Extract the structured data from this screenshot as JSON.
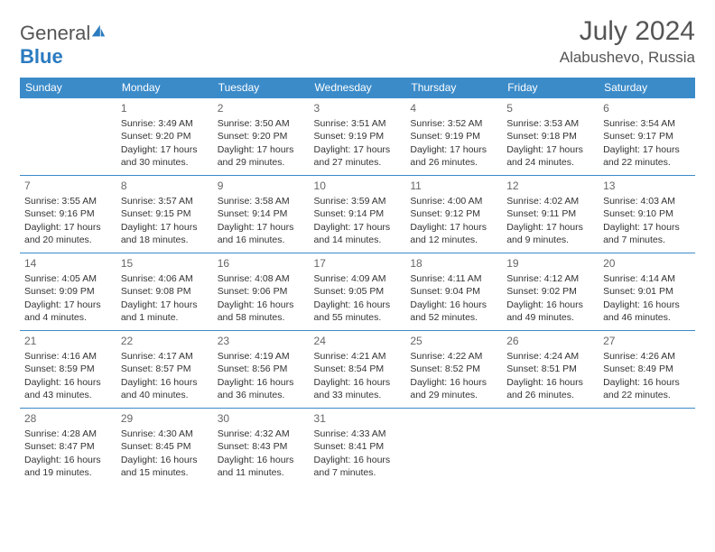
{
  "logo": {
    "text1": "General",
    "text2": "Blue"
  },
  "title": "July 2024",
  "location": "Alabushevo, Russia",
  "daysOfWeek": [
    "Sunday",
    "Monday",
    "Tuesday",
    "Wednesday",
    "Thursday",
    "Friday",
    "Saturday"
  ],
  "colors": {
    "header_bg": "#3b8bc9",
    "header_text": "#ffffff",
    "border": "#3b8bc9",
    "logo_blue": "#2b7bbf"
  },
  "weeks": [
    [
      {
        "day": "",
        "lines": []
      },
      {
        "day": "1",
        "lines": [
          "Sunrise: 3:49 AM",
          "Sunset: 9:20 PM",
          "Daylight: 17 hours and 30 minutes."
        ]
      },
      {
        "day": "2",
        "lines": [
          "Sunrise: 3:50 AM",
          "Sunset: 9:20 PM",
          "Daylight: 17 hours and 29 minutes."
        ]
      },
      {
        "day": "3",
        "lines": [
          "Sunrise: 3:51 AM",
          "Sunset: 9:19 PM",
          "Daylight: 17 hours and 27 minutes."
        ]
      },
      {
        "day": "4",
        "lines": [
          "Sunrise: 3:52 AM",
          "Sunset: 9:19 PM",
          "Daylight: 17 hours and 26 minutes."
        ]
      },
      {
        "day": "5",
        "lines": [
          "Sunrise: 3:53 AM",
          "Sunset: 9:18 PM",
          "Daylight: 17 hours and 24 minutes."
        ]
      },
      {
        "day": "6",
        "lines": [
          "Sunrise: 3:54 AM",
          "Sunset: 9:17 PM",
          "Daylight: 17 hours and 22 minutes."
        ]
      }
    ],
    [
      {
        "day": "7",
        "lines": [
          "Sunrise: 3:55 AM",
          "Sunset: 9:16 PM",
          "Daylight: 17 hours and 20 minutes."
        ]
      },
      {
        "day": "8",
        "lines": [
          "Sunrise: 3:57 AM",
          "Sunset: 9:15 PM",
          "Daylight: 17 hours and 18 minutes."
        ]
      },
      {
        "day": "9",
        "lines": [
          "Sunrise: 3:58 AM",
          "Sunset: 9:14 PM",
          "Daylight: 17 hours and 16 minutes."
        ]
      },
      {
        "day": "10",
        "lines": [
          "Sunrise: 3:59 AM",
          "Sunset: 9:14 PM",
          "Daylight: 17 hours and 14 minutes."
        ]
      },
      {
        "day": "11",
        "lines": [
          "Sunrise: 4:00 AM",
          "Sunset: 9:12 PM",
          "Daylight: 17 hours and 12 minutes."
        ]
      },
      {
        "day": "12",
        "lines": [
          "Sunrise: 4:02 AM",
          "Sunset: 9:11 PM",
          "Daylight: 17 hours and 9 minutes."
        ]
      },
      {
        "day": "13",
        "lines": [
          "Sunrise: 4:03 AM",
          "Sunset: 9:10 PM",
          "Daylight: 17 hours and 7 minutes."
        ]
      }
    ],
    [
      {
        "day": "14",
        "lines": [
          "Sunrise: 4:05 AM",
          "Sunset: 9:09 PM",
          "Daylight: 17 hours and 4 minutes."
        ]
      },
      {
        "day": "15",
        "lines": [
          "Sunrise: 4:06 AM",
          "Sunset: 9:08 PM",
          "Daylight: 17 hours and 1 minute."
        ]
      },
      {
        "day": "16",
        "lines": [
          "Sunrise: 4:08 AM",
          "Sunset: 9:06 PM",
          "Daylight: 16 hours and 58 minutes."
        ]
      },
      {
        "day": "17",
        "lines": [
          "Sunrise: 4:09 AM",
          "Sunset: 9:05 PM",
          "Daylight: 16 hours and 55 minutes."
        ]
      },
      {
        "day": "18",
        "lines": [
          "Sunrise: 4:11 AM",
          "Sunset: 9:04 PM",
          "Daylight: 16 hours and 52 minutes."
        ]
      },
      {
        "day": "19",
        "lines": [
          "Sunrise: 4:12 AM",
          "Sunset: 9:02 PM",
          "Daylight: 16 hours and 49 minutes."
        ]
      },
      {
        "day": "20",
        "lines": [
          "Sunrise: 4:14 AM",
          "Sunset: 9:01 PM",
          "Daylight: 16 hours and 46 minutes."
        ]
      }
    ],
    [
      {
        "day": "21",
        "lines": [
          "Sunrise: 4:16 AM",
          "Sunset: 8:59 PM",
          "Daylight: 16 hours and 43 minutes."
        ]
      },
      {
        "day": "22",
        "lines": [
          "Sunrise: 4:17 AM",
          "Sunset: 8:57 PM",
          "Daylight: 16 hours and 40 minutes."
        ]
      },
      {
        "day": "23",
        "lines": [
          "Sunrise: 4:19 AM",
          "Sunset: 8:56 PM",
          "Daylight: 16 hours and 36 minutes."
        ]
      },
      {
        "day": "24",
        "lines": [
          "Sunrise: 4:21 AM",
          "Sunset: 8:54 PM",
          "Daylight: 16 hours and 33 minutes."
        ]
      },
      {
        "day": "25",
        "lines": [
          "Sunrise: 4:22 AM",
          "Sunset: 8:52 PM",
          "Daylight: 16 hours and 29 minutes."
        ]
      },
      {
        "day": "26",
        "lines": [
          "Sunrise: 4:24 AM",
          "Sunset: 8:51 PM",
          "Daylight: 16 hours and 26 minutes."
        ]
      },
      {
        "day": "27",
        "lines": [
          "Sunrise: 4:26 AM",
          "Sunset: 8:49 PM",
          "Daylight: 16 hours and 22 minutes."
        ]
      }
    ],
    [
      {
        "day": "28",
        "lines": [
          "Sunrise: 4:28 AM",
          "Sunset: 8:47 PM",
          "Daylight: 16 hours and 19 minutes."
        ]
      },
      {
        "day": "29",
        "lines": [
          "Sunrise: 4:30 AM",
          "Sunset: 8:45 PM",
          "Daylight: 16 hours and 15 minutes."
        ]
      },
      {
        "day": "30",
        "lines": [
          "Sunrise: 4:32 AM",
          "Sunset: 8:43 PM",
          "Daylight: 16 hours and 11 minutes."
        ]
      },
      {
        "day": "31",
        "lines": [
          "Sunrise: 4:33 AM",
          "Sunset: 8:41 PM",
          "Daylight: 16 hours and 7 minutes."
        ]
      },
      {
        "day": "",
        "lines": []
      },
      {
        "day": "",
        "lines": []
      },
      {
        "day": "",
        "lines": []
      }
    ]
  ]
}
